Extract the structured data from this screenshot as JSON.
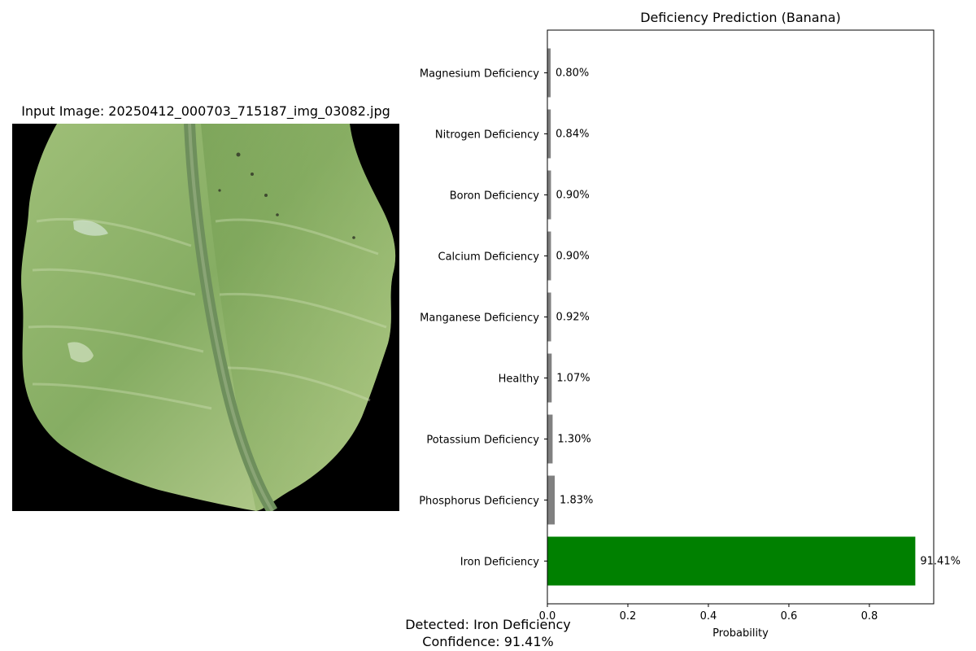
{
  "image_panel": {
    "title": "Input Image: 20250412_000703_715187_img_03082.jpg",
    "background_color": "#000000"
  },
  "summary": {
    "detected": "Detected: Iron Deficiency",
    "confidence": "Confidence: 91.41%"
  },
  "chart_data": {
    "type": "bar",
    "orientation": "horizontal",
    "title": "Deficiency Prediction (Banana)",
    "xlabel": "Probability",
    "ylabel": "",
    "xlim": [
      0,
      0.9598
    ],
    "xticks": [
      0.0,
      0.2,
      0.4,
      0.6,
      0.8
    ],
    "xtick_labels": [
      "0.0",
      "0.2",
      "0.4",
      "0.6",
      "0.8"
    ],
    "grid": false,
    "categories": [
      "Iron Deficiency",
      "Phosphorus Deficiency",
      "Potassium Deficiency",
      "Healthy",
      "Manganese Deficiency",
      "Calcium Deficiency",
      "Boron Deficiency",
      "Nitrogen Deficiency",
      "Magnesium Deficiency"
    ],
    "values": [
      0.9141,
      0.0183,
      0.013,
      0.0107,
      0.0092,
      0.009,
      0.009,
      0.0084,
      0.008
    ],
    "value_labels": [
      "91.41%",
      "1.83%",
      "1.30%",
      "1.07%",
      "0.92%",
      "0.90%",
      "0.90%",
      "0.84%",
      "0.80%"
    ],
    "colors": [
      "#008000",
      "#808080",
      "#808080",
      "#808080",
      "#808080",
      "#808080",
      "#808080",
      "#808080",
      "#808080"
    ]
  }
}
